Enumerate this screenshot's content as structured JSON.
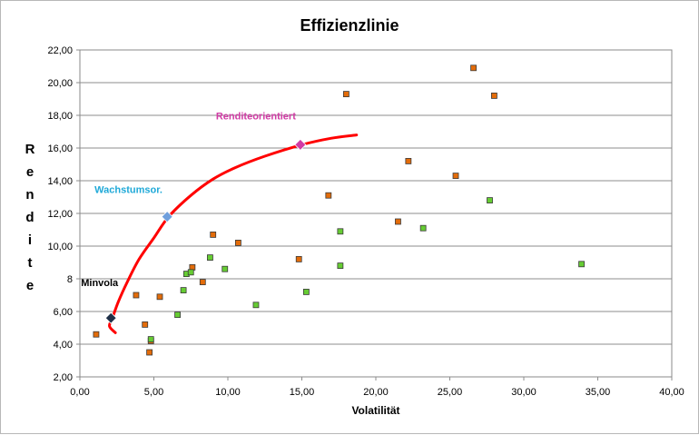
{
  "chart_data": {
    "type": "scatter",
    "title": "Effizienzlinie",
    "xlabel": "Volatilität",
    "ylabel": "Rendite",
    "xlim": [
      0,
      40
    ],
    "ylim": [
      2,
      22
    ],
    "xticks": [
      0,
      5,
      10,
      15,
      20,
      25,
      30,
      35,
      40
    ],
    "yticks": [
      2,
      4,
      6,
      8,
      10,
      12,
      14,
      16,
      18,
      20,
      22
    ],
    "xtick_labels": [
      "0,00",
      "5,00",
      "10,00",
      "15,00",
      "20,00",
      "25,00",
      "30,00",
      "35,00",
      "40,00"
    ],
    "ytick_labels": [
      "2,00",
      "4,00",
      "6,00",
      "8",
      "10,00",
      "12,00",
      "14,00",
      "16,00",
      "18,00",
      "20,00",
      "22,00"
    ],
    "grid": "horizontal",
    "series": [
      {
        "name": "Orange",
        "color": "#e36c0a",
        "points": [
          [
            1.1,
            4.6
          ],
          [
            3.8,
            7.0
          ],
          [
            4.4,
            5.2
          ],
          [
            4.7,
            3.5
          ],
          [
            4.8,
            4.2
          ],
          [
            5.4,
            6.9
          ],
          [
            7.6,
            8.7
          ],
          [
            8.3,
            7.8
          ],
          [
            9.0,
            10.7
          ],
          [
            10.7,
            10.2
          ],
          [
            14.8,
            9.2
          ],
          [
            16.8,
            13.1
          ],
          [
            18.0,
            19.3
          ],
          [
            21.5,
            11.5
          ],
          [
            22.2,
            15.2
          ],
          [
            25.4,
            14.3
          ],
          [
            26.6,
            20.9
          ],
          [
            28.0,
            19.2
          ]
        ]
      },
      {
        "name": "Green",
        "color": "#66cc33",
        "points": [
          [
            4.8,
            4.3
          ],
          [
            6.6,
            5.8
          ],
          [
            7.0,
            7.3
          ],
          [
            7.2,
            8.3
          ],
          [
            7.5,
            8.4
          ],
          [
            8.8,
            9.3
          ],
          [
            9.8,
            8.6
          ],
          [
            11.9,
            6.4
          ],
          [
            15.3,
            7.2
          ],
          [
            17.6,
            8.8
          ],
          [
            17.6,
            10.9
          ],
          [
            23.2,
            11.1
          ],
          [
            27.7,
            12.8
          ],
          [
            33.9,
            8.9
          ]
        ]
      }
    ],
    "efficient_frontier": {
      "name": "Effizienzlinie",
      "color": "#ff0000",
      "points": [
        [
          2.4,
          4.7
        ],
        [
          2.0,
          5.1
        ],
        [
          2.2,
          5.6
        ],
        [
          2.6,
          6.6
        ],
        [
          3.2,
          7.8
        ],
        [
          4.0,
          9.2
        ],
        [
          5.0,
          10.5
        ],
        [
          6.0,
          11.8
        ],
        [
          7.5,
          13.1
        ],
        [
          9.0,
          14.1
        ],
        [
          10.5,
          14.8
        ],
        [
          12.5,
          15.5
        ],
        [
          15.0,
          16.2
        ],
        [
          17.0,
          16.6
        ],
        [
          18.7,
          16.8
        ]
      ]
    },
    "markers": [
      {
        "label": "Minvola",
        "x": 2.1,
        "y": 5.6,
        "color": "#1f3048",
        "text_color": "#000000"
      },
      {
        "label": "Wachstumsor.",
        "x": 5.9,
        "y": 11.8,
        "color": "#6f9fdc",
        "text_color": "#1fa9d8"
      },
      {
        "label": "Renditeorientiert",
        "x": 14.9,
        "y": 16.2,
        "color": "#d13ba5",
        "text_color": "#d13ba5"
      }
    ]
  }
}
